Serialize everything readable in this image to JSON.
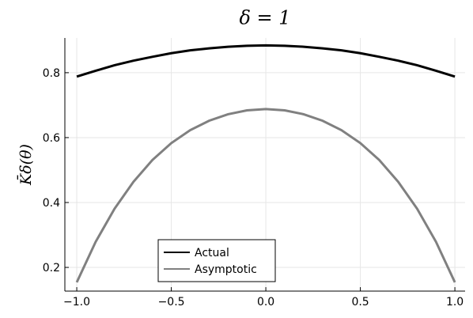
{
  "chart_data": {
    "type": "line",
    "title": "δ = 1",
    "y_label": "K̄δ(θ)",
    "x": [
      -1,
      -0.9,
      -0.8,
      -0.7,
      -0.6,
      -0.5,
      -0.4,
      -0.3,
      -0.2,
      -0.1,
      0,
      0.1,
      0.2,
      0.3,
      0.4,
      0.5,
      0.6,
      0.7,
      0.8,
      0.9,
      1
    ],
    "series": [
      {
        "name": "Actual",
        "color": "#000000",
        "values": [
          0.788,
          0.806,
          0.823,
          0.837,
          0.849,
          0.86,
          0.869,
          0.875,
          0.88,
          0.883,
          0.884,
          0.883,
          0.88,
          0.875,
          0.869,
          0.86,
          0.849,
          0.837,
          0.823,
          0.806,
          0.788
        ]
      },
      {
        "name": "Asymptotic",
        "color": "#808080",
        "values": [
          0.154,
          0.279,
          0.381,
          0.464,
          0.531,
          0.583,
          0.623,
          0.652,
          0.672,
          0.684,
          0.688,
          0.684,
          0.672,
          0.652,
          0.623,
          0.583,
          0.531,
          0.464,
          0.381,
          0.279,
          0.154
        ]
      }
    ],
    "xlim": [
      -1.063,
      1.054
    ],
    "xticks": [
      {
        "value": -1,
        "label": "−1.0"
      },
      {
        "value": -0.5,
        "label": "−0.5"
      },
      {
        "value": 0,
        "label": "0.0"
      },
      {
        "value": 0.5,
        "label": "0.5"
      },
      {
        "value": 1,
        "label": "1.0"
      }
    ],
    "ylim": [
      0.127,
      0.907
    ],
    "yticks": [
      0.2,
      0.4,
      0.6,
      0.8
    ],
    "grid": true,
    "legend": "bottom-left"
  }
}
